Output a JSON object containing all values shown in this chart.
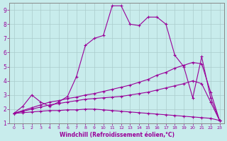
{
  "xlabel": "Windchill (Refroidissement éolien,°C)",
  "bg_color": "#c8ecec",
  "line_color": "#990099",
  "grid_color": "#aacccc",
  "xlim": [
    -0.5,
    23.5
  ],
  "ylim": [
    1,
    9.5
  ],
  "xticks": [
    0,
    1,
    2,
    3,
    4,
    5,
    6,
    7,
    8,
    9,
    10,
    11,
    12,
    13,
    14,
    15,
    16,
    17,
    18,
    19,
    20,
    21,
    22,
    23
  ],
  "yticks": [
    1,
    2,
    3,
    4,
    5,
    6,
    7,
    8,
    9
  ],
  "series": [
    {
      "x": [
        0,
        1,
        2,
        3,
        4,
        5,
        6,
        7,
        8,
        9,
        10,
        11,
        12,
        13,
        14,
        15,
        16,
        17,
        18,
        19,
        20,
        21,
        22,
        23
      ],
      "y": [
        1.7,
        2.2,
        3.0,
        2.5,
        2.2,
        2.5,
        2.9,
        4.3,
        6.5,
        7.0,
        7.2,
        9.3,
        9.3,
        8.0,
        7.9,
        8.5,
        8.5,
        8.0,
        5.8,
        5.0,
        2.8,
        5.7,
        2.8,
        1.2
      ]
    },
    {
      "x": [
        0,
        1,
        2,
        3,
        4,
        5,
        6,
        7,
        8,
        9,
        10,
        11,
        12,
        13,
        14,
        15,
        16,
        17,
        18,
        19,
        20,
        21,
        22,
        23
      ],
      "y": [
        1.7,
        1.9,
        2.1,
        2.3,
        2.5,
        2.6,
        2.75,
        2.85,
        3.0,
        3.1,
        3.25,
        3.4,
        3.55,
        3.7,
        3.9,
        4.1,
        4.4,
        4.6,
        4.9,
        5.1,
        5.3,
        5.2,
        3.2,
        1.2
      ]
    },
    {
      "x": [
        0,
        1,
        2,
        3,
        4,
        5,
        6,
        7,
        8,
        9,
        10,
        11,
        12,
        13,
        14,
        15,
        16,
        17,
        18,
        19,
        20,
        21,
        22,
        23
      ],
      "y": [
        1.7,
        1.85,
        2.0,
        2.15,
        2.3,
        2.4,
        2.5,
        2.6,
        2.7,
        2.75,
        2.8,
        2.85,
        2.9,
        3.0,
        3.1,
        3.2,
        3.35,
        3.5,
        3.65,
        3.8,
        4.0,
        3.8,
        2.5,
        1.2
      ]
    },
    {
      "x": [
        0,
        1,
        2,
        3,
        4,
        5,
        6,
        7,
        8,
        9,
        10,
        11,
        12,
        13,
        14,
        15,
        16,
        17,
        18,
        19,
        20,
        21,
        22,
        23
      ],
      "y": [
        1.7,
        1.75,
        1.8,
        1.85,
        1.9,
        1.9,
        1.95,
        1.95,
        2.0,
        2.0,
        1.95,
        1.9,
        1.85,
        1.8,
        1.75,
        1.7,
        1.65,
        1.6,
        1.55,
        1.5,
        1.45,
        1.4,
        1.35,
        1.2
      ]
    }
  ]
}
